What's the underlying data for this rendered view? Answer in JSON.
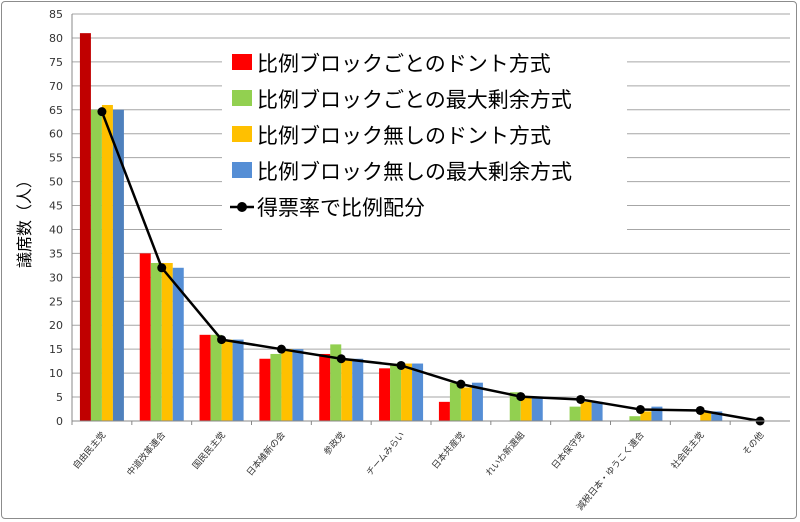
{
  "chart_data": {
    "type": "bar",
    "title": "",
    "xlabel": "",
    "ylabel": "議席数（人）",
    "ylim": [
      0,
      85
    ],
    "ytick_step": 5,
    "grid": true,
    "legend_placement": "top-right",
    "categories": [
      "自由民主党",
      "中道改革連合",
      "国民民主党",
      "日本維新の会",
      "参政党",
      "チームみらい",
      "日本共産党",
      "れいわ新選組",
      "日本保守党",
      "減税日本・ゆうこく連合",
      "社会民主党",
      "その他"
    ],
    "series": [
      {
        "name": "比例ブロックごとのドント方式",
        "type": "bar",
        "color": "#FF0000",
        "highlight_color": "#C00000",
        "values": [
          81,
          35,
          18,
          13,
          14,
          11,
          4,
          0,
          0,
          0,
          0,
          0
        ]
      },
      {
        "name": "比例ブロックごとの最大剰余方式",
        "type": "bar",
        "color": "#92D050",
        "values": [
          65,
          33,
          18,
          14,
          16,
          12,
          8,
          6,
          3,
          1,
          0,
          0
        ]
      },
      {
        "name": "比例ブロック無しのドント方式",
        "type": "bar",
        "color": "#FFC000",
        "values": [
          66,
          33,
          17,
          15,
          13,
          12,
          7,
          5,
          4,
          2,
          2,
          0
        ]
      },
      {
        "name": "比例ブロック無しの最大剰余方式",
        "type": "bar",
        "color": "#558ED5",
        "highlight_color": "#4F81BD",
        "values": [
          65,
          32,
          17,
          15,
          13,
          12,
          8,
          5,
          4,
          3,
          2,
          0
        ]
      },
      {
        "name": "得票率で比例配分",
        "type": "line",
        "color": "#000000",
        "values": [
          64.6,
          32,
          17,
          15,
          13,
          11.6,
          7.7,
          5.1,
          4.5,
          2.4,
          2.2,
          0
        ]
      }
    ]
  }
}
